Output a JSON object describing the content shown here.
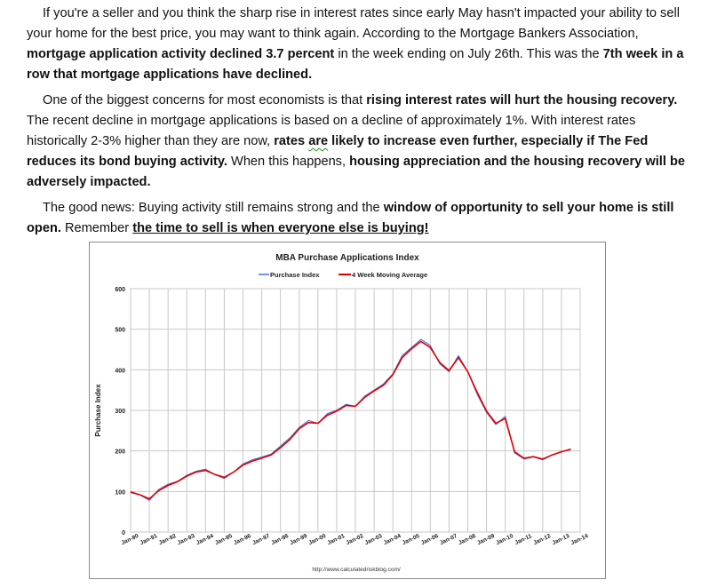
{
  "article": {
    "p1": {
      "a": "If you're a seller and you think the sharp rise in interest rates since early May hasn't impacted your ability to sell your home for the best price, you may want to think again. According to the Mortgage Bankers Association, ",
      "b1": "mortgage application activity declined 3.7 percent",
      "c": " in the week ending on July 26th. This was the ",
      "b2": "7th week in a row that mortgage applications have declined."
    },
    "p2": {
      "a": "One of the biggest concerns for most economists is that ",
      "b1": "rising interest rates will hurt the housing recovery.",
      "c": " The recent decline in mortgage applications is based on a decline of approximately 1%. With interest rates historically 2-3% higher than they are now, ",
      "b2a": "rates ",
      "b2b": "are",
      "b2c": " likely to increase even further, especially if The Fed reduces its bond buying activity.",
      "d": "  When this happens, ",
      "b3": "housing appreciation and the housing recovery will be adversely impacted."
    },
    "p3": {
      "a": "The good news:  Buying activity still remains strong and the ",
      "b1": "window of opportunity to sell your home is still open.",
      "c": "  Remember ",
      "b2": "the time to sell is when everyone else is buying!"
    }
  },
  "chart_data": {
    "type": "line",
    "title": "MBA Purchase Applications Index",
    "ylabel": "Purchase Index",
    "xlabel": "",
    "source": "http://www.calculatedriskblog.com/",
    "ylim": [
      0,
      600
    ],
    "yticks": [
      0,
      100,
      200,
      300,
      400,
      500,
      600
    ],
    "xticks": [
      "Jan-90",
      "Jan-91",
      "Jan-92",
      "Jan-93",
      "Jan-94",
      "Jan-95",
      "Jan-96",
      "Jan-97",
      "Jan-98",
      "Jan-99",
      "Jan-00",
      "Jan-01",
      "Jan-02",
      "Jan-03",
      "Jan-04",
      "Jan-05",
      "Jan-06",
      "Jan-07",
      "Jan-08",
      "Jan-09",
      "Jan-10",
      "Jan-11",
      "Jan-12",
      "Jan-13",
      "Jan-14"
    ],
    "xlim": [
      1990,
      2014
    ],
    "grid": true,
    "legend": "top-center",
    "series": [
      {
        "name": "Purchase Index",
        "color": "#4a6fd6",
        "x": [
          1990,
          1990.5,
          1991,
          1991.5,
          1992,
          1992.5,
          1993,
          1993.5,
          1994,
          1994.5,
          1995,
          1995.5,
          1996,
          1996.5,
          1997,
          1997.5,
          1998,
          1998.5,
          1999,
          1999.5,
          2000,
          2000.5,
          2001,
          2001.5,
          2002,
          2002.5,
          2003,
          2003.5,
          2004,
          2004.5,
          2005,
          2005.5,
          2006,
          2006.5,
          2007,
          2007.5,
          2008,
          2008.5,
          2009,
          2009.5,
          2010,
          2010.5,
          2011,
          2011.5,
          2012,
          2012.5,
          2013,
          2013.5
        ],
        "values": [
          100,
          92,
          78,
          105,
          118,
          125,
          140,
          150,
          155,
          142,
          132,
          148,
          168,
          178,
          185,
          192,
          212,
          232,
          258,
          275,
          268,
          292,
          300,
          315,
          310,
          335,
          350,
          365,
          390,
          435,
          455,
          475,
          460,
          415,
          395,
          435,
          395,
          340,
          295,
          265,
          285,
          195,
          180,
          185,
          178,
          190,
          198,
          205
        ]
      },
      {
        "name": "4 Week Moving Average",
        "color": "#e00000",
        "x": [
          1990,
          1990.5,
          1991,
          1991.5,
          1992,
          1992.5,
          1993,
          1993.5,
          1994,
          1994.5,
          1995,
          1995.5,
          1996,
          1996.5,
          1997,
          1997.5,
          1998,
          1998.5,
          1999,
          1999.5,
          2000,
          2000.5,
          2001,
          2001.5,
          2002,
          2002.5,
          2003,
          2003.5,
          2004,
          2004.5,
          2005,
          2005.5,
          2006,
          2006.5,
          2007,
          2007.5,
          2008,
          2008.5,
          2009,
          2009.5,
          2010,
          2010.5,
          2011,
          2011.5,
          2012,
          2012.5,
          2013,
          2013.5
        ],
        "values": [
          98,
          92,
          82,
          102,
          115,
          124,
          138,
          148,
          152,
          142,
          135,
          148,
          165,
          175,
          182,
          190,
          208,
          228,
          255,
          270,
          268,
          288,
          298,
          312,
          310,
          332,
          348,
          362,
          388,
          430,
          452,
          470,
          455,
          418,
          398,
          430,
          395,
          345,
          298,
          268,
          280,
          198,
          182,
          186,
          180,
          190,
          198,
          204
        ]
      }
    ]
  }
}
